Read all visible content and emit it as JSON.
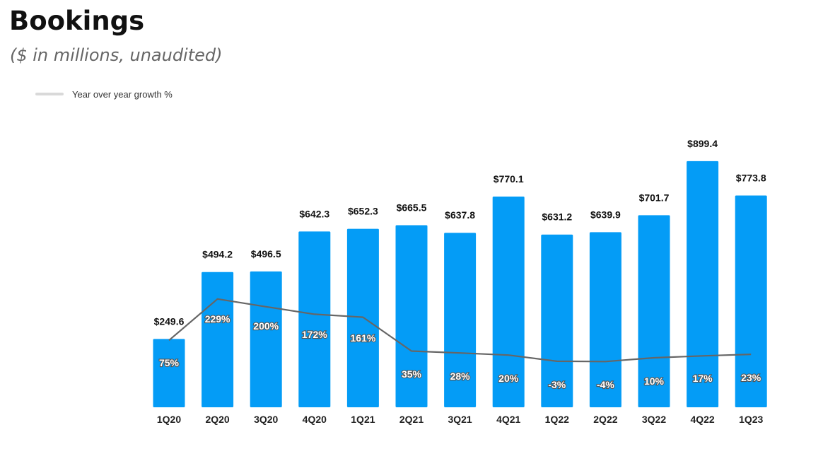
{
  "header": {
    "title": "Bookings",
    "subtitle": "($ in millions, unaudited)"
  },
  "legend": {
    "label": "Year over year growth %"
  },
  "colors": {
    "bar": "#049cf6",
    "line": "#666666",
    "legend_swatch": "#d9d9d9"
  },
  "chart_data": {
    "type": "bar",
    "title": "Bookings",
    "subtitle": "($ in millions, unaudited)",
    "categories": [
      "1Q20",
      "2Q20",
      "3Q20",
      "4Q20",
      "1Q21",
      "2Q21",
      "3Q21",
      "4Q21",
      "1Q22",
      "2Q22",
      "3Q22",
      "4Q22",
      "1Q23"
    ],
    "series": [
      {
        "type": "bar",
        "values": [
          249.6,
          494.2,
          496.5,
          642.3,
          652.3,
          665.5,
          637.8,
          770.1,
          631.2,
          639.9,
          701.7,
          899.4,
          773.8
        ],
        "labels": [
          "$249.6",
          "$494.2",
          "$496.5",
          "$642.3",
          "$652.3",
          "$665.5",
          "$637.8",
          "$770.1",
          "$631.2",
          "$639.9",
          "$701.7",
          "$899.4",
          "$773.8"
        ]
      },
      {
        "name": "Year over year growth %",
        "type": "line",
        "values": [
          75,
          229,
          200,
          172,
          161,
          35,
          28,
          20,
          -3,
          -4,
          10,
          17,
          23
        ],
        "labels": [
          "75%",
          "229%",
          "200%",
          "172%",
          "161%",
          "35%",
          "28%",
          "20%",
          "-3%",
          "-4%",
          "10%",
          "17%",
          "23%"
        ]
      }
    ],
    "ylim": [
      0,
      1000
    ],
    "growth_ylim": [
      -70,
      430
    ],
    "grid": false,
    "legend_position": "top-left"
  }
}
